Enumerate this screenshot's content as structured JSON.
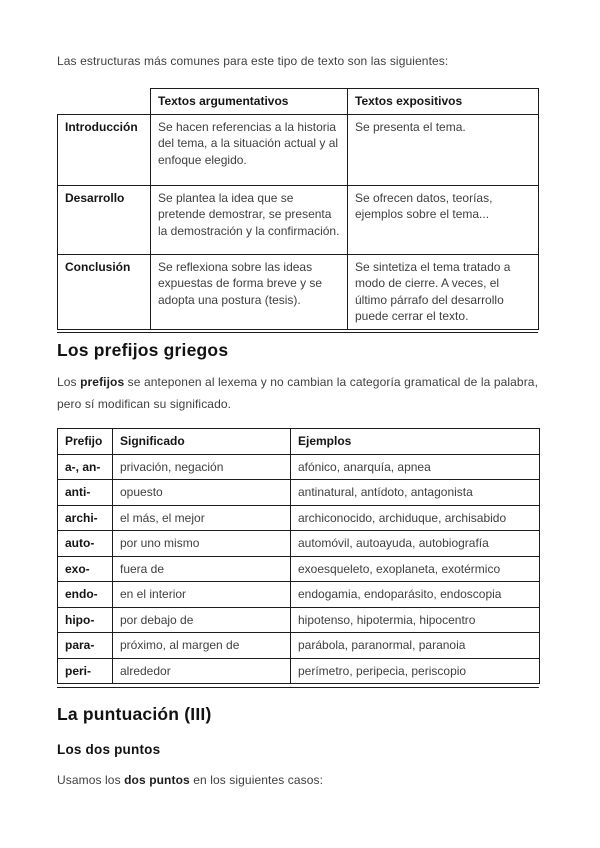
{
  "document": {
    "colors": {
      "text_body": "#3f3f3f",
      "text_heading": "#121212",
      "table_border": "#1c1c1c",
      "page_background": "#ffffff"
    },
    "intro_paragraph": "Las estructuras más comunes para este tipo de texto son las siguientes:",
    "structure_table": {
      "col_headers": [
        "Textos argumentativos",
        "Textos expositivos"
      ],
      "rows": [
        {
          "stage": "Introducción",
          "argumentativos": "Se hacen referencias a la historia del tema, a la situación actual y al enfoque elegido.",
          "expositivos": "Se presenta el tema."
        },
        {
          "stage": "Desarrollo",
          "argumentativos": "Se plantea la idea que se pretende demostrar, se presenta la demostración y la confirmación.",
          "expositivos": "Se ofrecen datos, teorías, ejemplos sobre el tema..."
        },
        {
          "stage": "Conclusión",
          "argumentativos": "Se reflexiona sobre las ideas expuestas de forma breve y se adopta una postura (tesis).",
          "expositivos": "Se sintetiza el tema tratado a modo de cierre. A veces, el último párrafo del desarrollo puede cerrar el texto."
        }
      ]
    },
    "prefixes_section": {
      "heading": "Los prefijos griegos",
      "paragraph": [
        {
          "t": "Los "
        },
        {
          "t": "prefijos",
          "b": true
        },
        {
          "t": " se anteponen al lexema y no cambian la categoría gramatical de la palabra, pero sí modifican su significado."
        }
      ],
      "table": {
        "headers": [
          "Prefijo",
          "Significado",
          "Ejemplos"
        ],
        "rows": [
          [
            "a-, an-",
            "privación, negación",
            "afónico, anarquía, apnea"
          ],
          [
            "anti-",
            "opuesto",
            "antinatural, antídoto, antagonista"
          ],
          [
            "archi-",
            "el más, el mejor",
            "archiconocido, archiduque, archisabido"
          ],
          [
            "auto-",
            "por uno mismo",
            "automóvil, autoayuda, autobiografía"
          ],
          [
            "exo-",
            "fuera de",
            "exoesqueleto, exoplaneta, exotérmico"
          ],
          [
            "endo-",
            "en el interior",
            "endogamia, endoparásito, endoscopia"
          ],
          [
            "hipo-",
            "por debajo de",
            "hipotenso, hipotermia, hipocentro"
          ],
          [
            "para-",
            "próximo, al margen de",
            "parábola, paranormal, paranoia"
          ],
          [
            "peri-",
            "alrededor",
            "perímetro, peripecia, periscopio"
          ]
        ]
      }
    },
    "punctuation_section": {
      "heading": "La puntuación (III)",
      "subheading": "Los dos puntos",
      "paragraph": [
        {
          "t": "Usamos los "
        },
        {
          "t": "dos puntos",
          "b": true
        },
        {
          "t": " en los siguientes casos:"
        }
      ]
    }
  }
}
